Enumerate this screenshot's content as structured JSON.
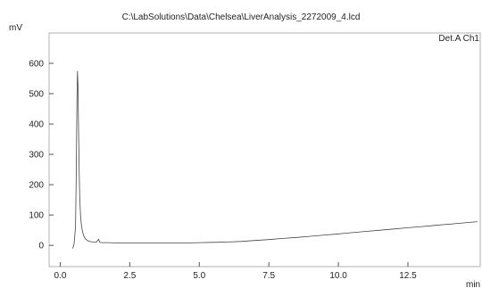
{
  "chart_data": {
    "type": "line",
    "title": "C:\\LabSolutions\\Data\\Chelsea\\LiverAnalysis_2272009_4.lcd",
    "xlabel": "min",
    "ylabel": "mV",
    "xlim": [
      -0.4,
      15.1
    ],
    "ylim": [
      -70,
      700
    ],
    "x_ticks": [
      0.0,
      2.5,
      5.0,
      7.5,
      10.0,
      12.5
    ],
    "x_tick_labels": [
      "0.0",
      "2.5",
      "5.0",
      "7.5",
      "10.0",
      "12.5"
    ],
    "y_ticks": [
      0,
      100,
      200,
      300,
      400,
      500,
      600
    ],
    "y_tick_labels": [
      "0",
      "100",
      "200",
      "300",
      "400",
      "500",
      "600"
    ],
    "grid": false,
    "series": [
      {
        "name": "Det.A Ch1",
        "x": [
          0.45,
          0.5,
          0.55,
          0.58,
          0.6,
          0.62,
          0.64,
          0.66,
          0.68,
          0.7,
          0.73,
          0.76,
          0.8,
          0.85,
          0.9,
          0.95,
          1.0,
          1.1,
          1.2,
          1.3,
          1.38,
          1.42,
          1.5,
          1.75,
          2.0,
          2.5,
          3.0,
          3.5,
          4.0,
          4.5,
          5.0,
          5.5,
          6.0,
          6.5,
          7.0,
          7.5,
          8.0,
          8.5,
          9.0,
          9.5,
          10.0,
          10.5,
          11.0,
          11.5,
          12.0,
          12.5,
          13.0,
          13.5,
          14.0,
          14.5,
          15.0
        ],
        "values": [
          -10,
          5,
          60,
          250,
          480,
          575,
          520,
          380,
          250,
          160,
          100,
          70,
          45,
          30,
          22,
          18,
          15,
          12,
          11,
          11,
          20,
          10,
          9,
          9,
          8,
          8,
          8,
          8,
          8,
          8,
          9,
          10,
          11,
          13,
          16,
          19,
          23,
          26,
          30,
          34,
          38,
          42,
          46,
          50,
          54,
          58,
          62,
          66,
          70,
          74,
          78
        ]
      }
    ]
  }
}
